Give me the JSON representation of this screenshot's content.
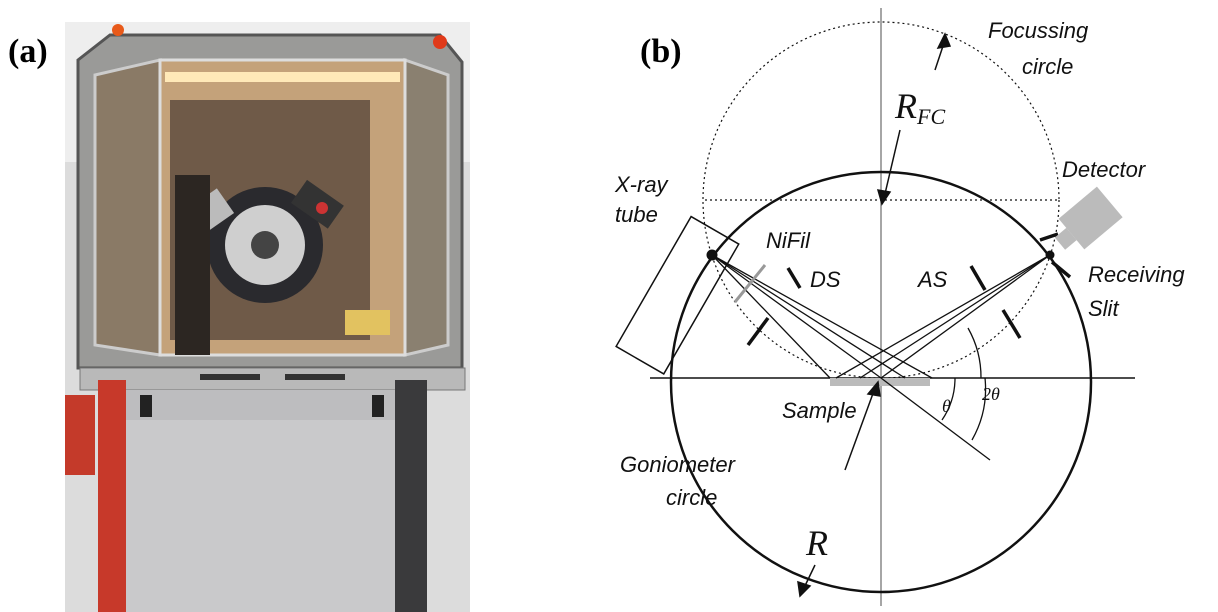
{
  "panels": {
    "a": {
      "label": "(a)"
    },
    "b": {
      "label": "(b)",
      "labels": {
        "focussing": [
          "Focussing",
          "circle"
        ],
        "rfc": {
          "base": "R",
          "sub": "FC"
        },
        "xray": [
          "X-ray",
          "tube"
        ],
        "nifil": "NiFil",
        "ds": "DS",
        "as": "AS",
        "detector": "Detector",
        "receiving": [
          "Receiving",
          "Slit"
        ],
        "two_theta": "2θ",
        "theta": "θ",
        "sample": "Sample",
        "goniometer": [
          "Goniometer",
          "circle"
        ],
        "r": "R"
      }
    }
  }
}
